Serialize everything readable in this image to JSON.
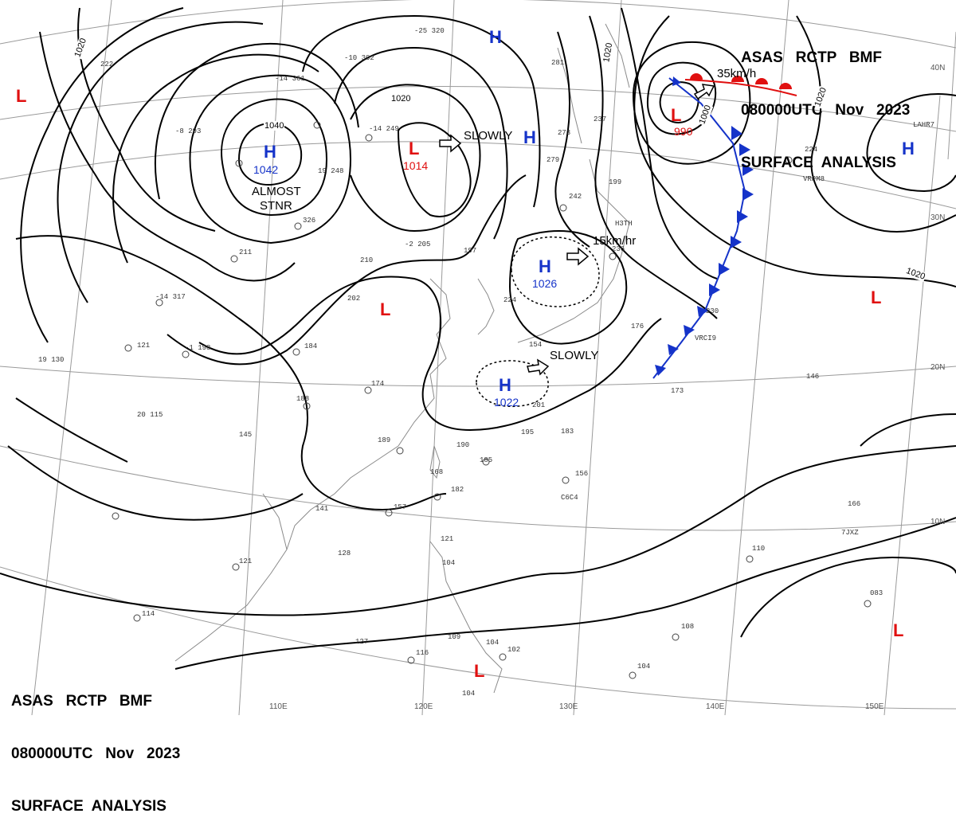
{
  "header": {
    "lines": [
      "ASAS   RCTP   BMF",
      "080000UTC   Nov   2023",
      "SURFACE  ANALYSIS"
    ]
  },
  "colors": {
    "high": "#1533c9",
    "low": "#e01010",
    "cold_front": "#1533c9",
    "warm_front": "#e01010"
  },
  "pressure_systems": [
    {
      "type": "H",
      "value": "1042"
    },
    {
      "type": "L",
      "value": "1014"
    },
    {
      "type": "H",
      "value": "1026"
    },
    {
      "type": "H",
      "value": "1022"
    },
    {
      "type": "L",
      "value": "990"
    },
    {
      "type": "H",
      "value": ""
    },
    {
      "type": "H",
      "value": ""
    },
    {
      "type": "H",
      "value": ""
    },
    {
      "type": "L",
      "value": ""
    },
    {
      "type": "L",
      "value": ""
    },
    {
      "type": "L",
      "value": ""
    },
    {
      "type": "L",
      "value": ""
    }
  ],
  "movements": [
    "SLOWLY",
    "15km/hr",
    "SLOWLY",
    "35km/h",
    "ALMOST",
    "STNR"
  ],
  "isobar_labels": [
    "1020",
    "1040",
    "1020",
    "1020",
    "1000",
    "1020",
    "1020"
  ],
  "latitude_labels": [
    "40N",
    "30N",
    "20N",
    "10N"
  ],
  "longitude_labels": [
    "110E",
    "120E",
    "130E",
    "140E",
    "150E"
  ],
  "station_values": [
    "-25  320",
    "-10  302",
    "-14  361",
    "-8  293",
    "222",
    "-14  249",
    "19  248",
    "326",
    "211",
    "-14  317",
    "210",
    "202",
    "-2  205",
    "197",
    "-1  198",
    "184",
    "121",
    "19  130",
    "20  115",
    "188",
    "145",
    "174",
    "189",
    "190",
    "185",
    "168",
    "182",
    "157",
    "141",
    "128",
    "121",
    "104",
    "121",
    "114",
    "127",
    "116",
    "109",
    "104",
    "102",
    "104",
    "156",
    "166",
    "110",
    "083",
    "108",
    "104",
    "146",
    "173",
    "230",
    "176",
    "236",
    "242",
    "199",
    "237",
    "273",
    "281",
    "279",
    "224",
    "195",
    "183",
    "201",
    "154",
    "224"
  ],
  "station_ids": [
    "VRPM8",
    "VRCI9",
    "LAHR7",
    "H3TH",
    "C6C4",
    "7JXZ"
  ]
}
